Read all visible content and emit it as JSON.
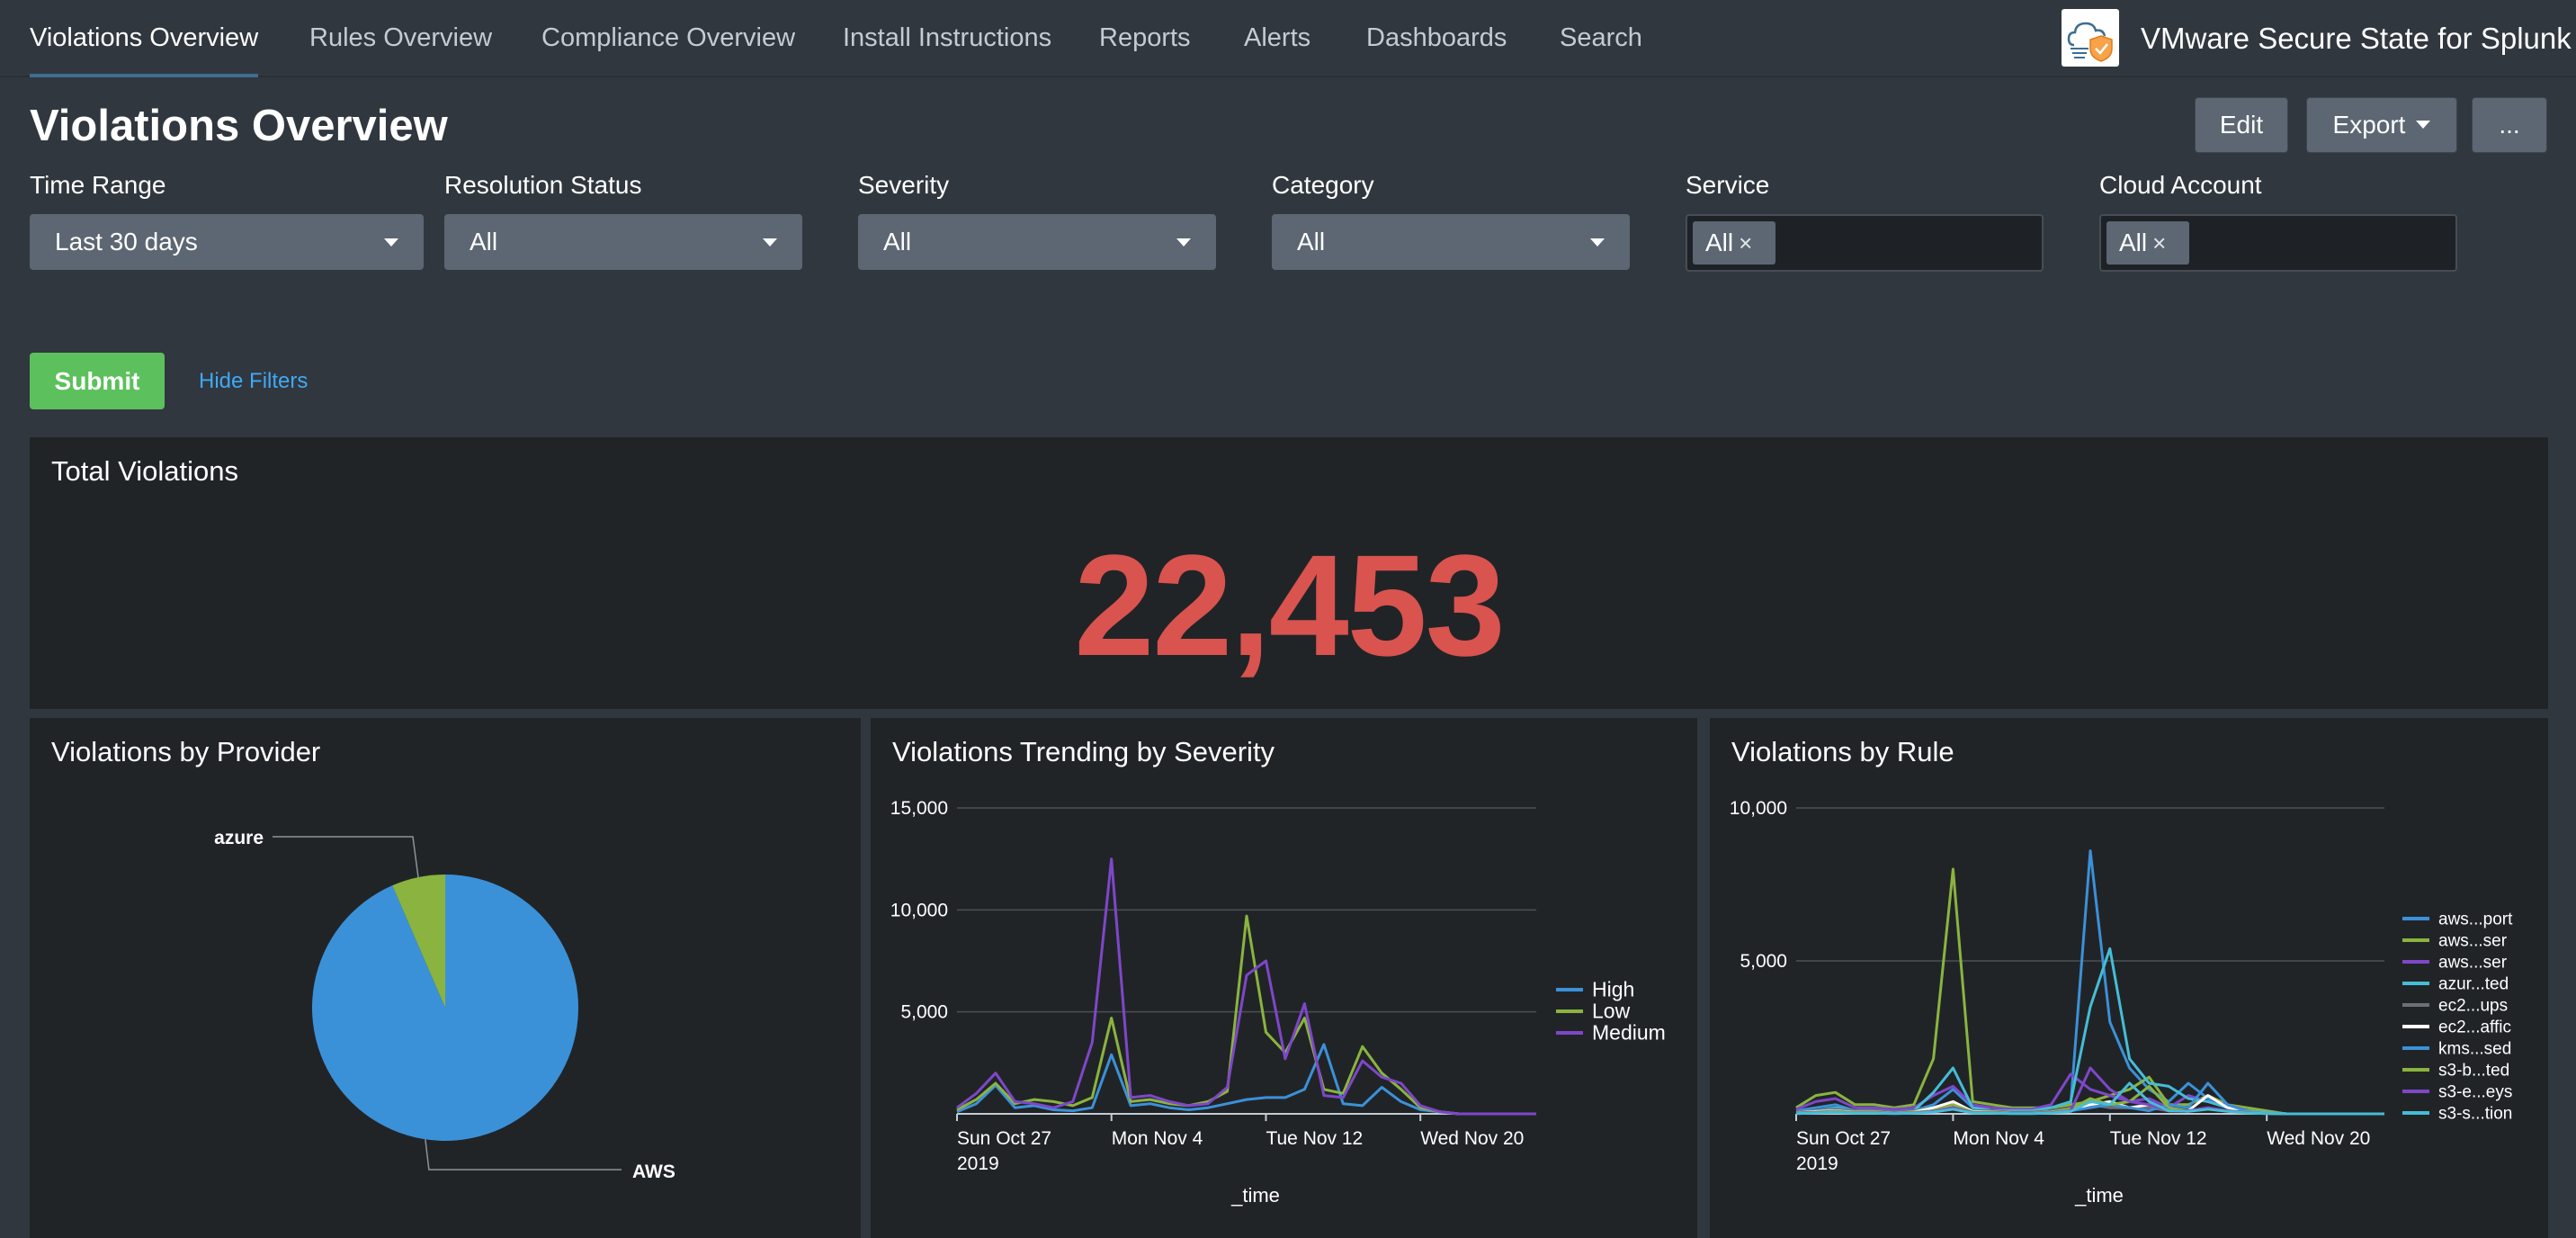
{
  "nav": {
    "items": [
      "Violations Overview",
      "Rules Overview",
      "Compliance Overview",
      "Install Instructions",
      "Reports",
      "Alerts",
      "Dashboards",
      "Search"
    ],
    "active": "Violations Overview",
    "app_title": "VMware Secure State for Splunk"
  },
  "header": {
    "title": "Violations Overview",
    "edit_label": "Edit",
    "export_label": "Export",
    "more_label": "..."
  },
  "filters": {
    "time_range": {
      "label": "Time Range",
      "value": "Last 30 days"
    },
    "resolution_status": {
      "label": "Resolution Status",
      "value": "All"
    },
    "severity": {
      "label": "Severity",
      "value": "All"
    },
    "category": {
      "label": "Category",
      "value": "All"
    },
    "service": {
      "label": "Service",
      "token": "All",
      "remove": "×"
    },
    "cloud_account": {
      "label": "Cloud Account",
      "token": "All",
      "remove": "×"
    },
    "submit_label": "Submit",
    "hide_filters_label": "Hide Filters"
  },
  "total_violations": {
    "title": "Total Violations",
    "value": "22,453",
    "color": "#d9534f"
  },
  "colors": {
    "blue": "#3b91d8",
    "green": "#8ab43f",
    "purple": "#7e47c8",
    "teal": "#45bdd6",
    "gray": "#6b7177",
    "white": "#ffffff"
  },
  "chart_data": [
    {
      "type": "pie",
      "title": "Violations by Provider",
      "slices": [
        {
          "label": "AWS",
          "value": 93.5,
          "color": "#3b91d8"
        },
        {
          "label": "azure",
          "value": 6.5,
          "color": "#8ab43f"
        }
      ]
    },
    {
      "type": "line",
      "title": "Violations Trending by Severity",
      "xlabel": "_time",
      "ylabel": "",
      "ylim": [
        0,
        15000
      ],
      "yticks": [
        "5,000",
        "10,000",
        "15,000"
      ],
      "ytick_values": [
        5000,
        10000,
        15000
      ],
      "xticks": [
        {
          "day": 0,
          "label": "Sun Oct 27",
          "sub": "2019"
        },
        {
          "day": 8,
          "label": "Mon Nov 4",
          "sub": ""
        },
        {
          "day": 16,
          "label": "Tue Nov 12",
          "sub": ""
        },
        {
          "day": 24,
          "label": "Wed Nov 20",
          "sub": ""
        }
      ],
      "x": [
        0,
        1,
        2,
        3,
        4,
        5,
        6,
        7,
        8,
        9,
        10,
        11,
        12,
        13,
        14,
        15,
        16,
        17,
        18,
        19,
        20,
        21,
        22,
        23,
        24,
        25,
        26,
        27,
        28,
        29,
        30
      ],
      "legend_position": "right",
      "series": [
        {
          "name": "High",
          "color": "#3b91d8",
          "values": [
            100,
            500,
            1400,
            300,
            400,
            200,
            150,
            300,
            2900,
            400,
            500,
            300,
            200,
            300,
            500,
            700,
            800,
            800,
            1200,
            3400,
            500,
            400,
            1300,
            600,
            200,
            100,
            0,
            0,
            0,
            0,
            0
          ]
        },
        {
          "name": "Low",
          "color": "#8ab43f",
          "values": [
            200,
            700,
            1500,
            500,
            700,
            600,
            400,
            800,
            4700,
            600,
            700,
            500,
            400,
            600,
            1100,
            9700,
            4000,
            3000,
            4700,
            1200,
            1000,
            3300,
            2000,
            1200,
            300,
            100,
            0,
            0,
            0,
            0,
            0
          ]
        },
        {
          "name": "Medium",
          "color": "#7e47c8",
          "values": [
            300,
            1000,
            2000,
            600,
            500,
            300,
            600,
            3500,
            12500,
            800,
            900,
            600,
            400,
            500,
            1300,
            6800,
            7500,
            2700,
            5400,
            900,
            800,
            2600,
            1800,
            1500,
            400,
            100,
            0,
            0,
            0,
            0,
            0
          ]
        }
      ]
    },
    {
      "type": "line",
      "title": "Violations by Rule",
      "xlabel": "_time",
      "ylabel": "",
      "ylim": [
        0,
        10000
      ],
      "yticks": [
        "5,000",
        "10,000"
      ],
      "ytick_values": [
        5000,
        10000
      ],
      "xticks": [
        {
          "day": 0,
          "label": "Sun Oct 27",
          "sub": "2019"
        },
        {
          "day": 8,
          "label": "Mon Nov 4",
          "sub": ""
        },
        {
          "day": 16,
          "label": "Tue Nov 12",
          "sub": ""
        },
        {
          "day": 24,
          "label": "Wed Nov 20",
          "sub": ""
        }
      ],
      "x": [
        0,
        1,
        2,
        3,
        4,
        5,
        6,
        7,
        8,
        9,
        10,
        11,
        12,
        13,
        14,
        15,
        16,
        17,
        18,
        19,
        20,
        21,
        22,
        23,
        24,
        25,
        26,
        27,
        28,
        29,
        30
      ],
      "legend_position": "right",
      "series": [
        {
          "name": "aws...port",
          "color": "#3b91d8",
          "values": [
            100,
            200,
            300,
            100,
            200,
            100,
            100,
            300,
            800,
            200,
            200,
            100,
            100,
            200,
            300,
            8600,
            3000,
            1500,
            800,
            400,
            1000,
            500,
            300,
            100,
            50,
            0,
            0,
            0,
            0,
            0,
            0
          ]
        },
        {
          "name": "aws...ser",
          "color": "#8ab43f",
          "values": [
            200,
            600,
            700,
            300,
            300,
            200,
            300,
            1800,
            8000,
            400,
            300,
            200,
            200,
            200,
            300,
            400,
            600,
            800,
            1200,
            300,
            300,
            600,
            300,
            200,
            100,
            0,
            0,
            0,
            0,
            0,
            0
          ]
        },
        {
          "name": "aws...ser",
          "color": "#7e47c8",
          "values": [
            150,
            400,
            500,
            200,
            200,
            150,
            200,
            600,
            900,
            300,
            200,
            150,
            150,
            300,
            1300,
            800,
            600,
            400,
            500,
            200,
            600,
            400,
            300,
            100,
            50,
            0,
            0,
            0,
            0,
            0,
            0
          ]
        },
        {
          "name": "azur...ted",
          "color": "#45bdd6",
          "values": [
            50,
            100,
            200,
            100,
            100,
            50,
            100,
            700,
            1500,
            200,
            100,
            100,
            100,
            200,
            400,
            3500,
            5400,
            1800,
            1000,
            900,
            500,
            400,
            200,
            100,
            50,
            0,
            0,
            0,
            0,
            0,
            0
          ]
        },
        {
          "name": "ec2...ups",
          "color": "#6b7177",
          "values": [
            50,
            100,
            150,
            100,
            100,
            50,
            100,
            200,
            300,
            100,
            100,
            50,
            50,
            100,
            200,
            300,
            200,
            200,
            200,
            100,
            100,
            150,
            100,
            50,
            20,
            0,
            0,
            0,
            0,
            0,
            0
          ]
        },
        {
          "name": "ec2...affic",
          "color": "#ffffff",
          "values": [
            30,
            80,
            100,
            60,
            60,
            30,
            60,
            200,
            400,
            80,
            60,
            30,
            30,
            60,
            150,
            300,
            400,
            200,
            300,
            100,
            100,
            600,
            200,
            80,
            20,
            0,
            0,
            0,
            0,
            0,
            0
          ]
        },
        {
          "name": "kms...sed",
          "color": "#3b91d8",
          "values": [
            20,
            60,
            80,
            40,
            40,
            20,
            40,
            100,
            200,
            60,
            40,
            20,
            20,
            40,
            100,
            200,
            300,
            200,
            100,
            300,
            200,
            1000,
            300,
            80,
            20,
            0,
            0,
            0,
            0,
            0,
            0
          ]
        },
        {
          "name": "s3-b...ted",
          "color": "#8ab43f",
          "values": [
            30,
            60,
            80,
            50,
            50,
            30,
            50,
            100,
            300,
            60,
            50,
            30,
            30,
            60,
            150,
            500,
            300,
            400,
            900,
            200,
            100,
            200,
            100,
            60,
            20,
            0,
            0,
            0,
            0,
            0,
            0
          ]
        },
        {
          "name": "s3-e...eys",
          "color": "#7e47c8",
          "values": [
            20,
            40,
            60,
            30,
            30,
            20,
            30,
            80,
            200,
            40,
            30,
            20,
            20,
            40,
            100,
            1500,
            800,
            400,
            300,
            100,
            100,
            200,
            100,
            40,
            10,
            0,
            0,
            0,
            0,
            0,
            0
          ]
        },
        {
          "name": "s3-s...tion",
          "color": "#45bdd6",
          "values": [
            10,
            30,
            50,
            20,
            20,
            10,
            20,
            60,
            150,
            30,
            20,
            10,
            10,
            30,
            80,
            400,
            300,
            1000,
            400,
            100,
            80,
            150,
            80,
            30,
            10,
            0,
            0,
            0,
            0,
            0,
            0
          ]
        }
      ]
    }
  ]
}
